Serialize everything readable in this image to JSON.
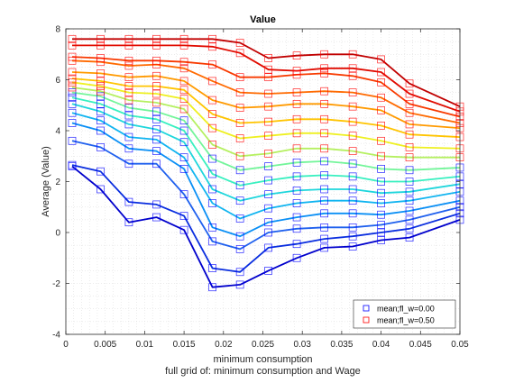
{
  "chart_data": {
    "type": "line",
    "title": "Value",
    "xlabel": "minimum consumption",
    "xlabel2": "full grid of: minimum consumption and Wage",
    "ylabel": "Average (Value)",
    "xlim": [
      0,
      0.05
    ],
    "ylim": [
      -4,
      8
    ],
    "xticks": [
      "0",
      "0.005",
      "0.01",
      "0.015",
      "0.02",
      "0.025",
      "0.03",
      "0.035",
      "0.04",
      "0.045",
      "0.05"
    ],
    "yticks": [
      "-4",
      "-2",
      "0",
      "2",
      "4",
      "6",
      "8"
    ],
    "grid": "minor dotted",
    "legend": {
      "placement": "bottom-right",
      "entries": [
        {
          "label": "mean;fl_w=0.00",
          "color": "#0000ff",
          "marker": "square"
        },
        {
          "label": "mean;fl_w=0.50",
          "color": "#ff0000",
          "marker": "square"
        }
      ]
    },
    "x": [
      0.0008,
      0.0044,
      0.008,
      0.0115,
      0.015,
      0.0186,
      0.0221,
      0.0257,
      0.0293,
      0.0328,
      0.0364,
      0.04,
      0.0436,
      0.05
    ],
    "series": [
      {
        "color": "#0000cc",
        "values": [
          2.6,
          1.7,
          0.4,
          0.6,
          0.1,
          -2.15,
          -2.05,
          -1.5,
          -1.0,
          -0.6,
          -0.55,
          -0.3,
          -0.2,
          0.5
        ]
      },
      {
        "color": "#0a2edf",
        "values": [
          2.65,
          2.4,
          1.2,
          1.1,
          0.65,
          -1.4,
          -1.55,
          -0.6,
          -0.45,
          -0.25,
          -0.15,
          0.0,
          0.15,
          0.75
        ]
      },
      {
        "color": "#1f60ee",
        "values": [
          3.6,
          3.35,
          2.7,
          2.7,
          1.5,
          -0.35,
          -0.65,
          0.0,
          0.15,
          0.2,
          0.2,
          0.3,
          0.5,
          1.0
        ]
      },
      {
        "color": "#0a8ff5",
        "values": [
          4.3,
          4.0,
          3.3,
          3.2,
          2.5,
          0.2,
          -0.15,
          0.4,
          0.6,
          0.75,
          0.75,
          0.7,
          0.85,
          1.25
        ]
      },
      {
        "color": "#10b4f0",
        "values": [
          4.7,
          4.4,
          3.75,
          3.65,
          2.95,
          1.15,
          0.55,
          0.95,
          1.15,
          1.25,
          1.25,
          1.15,
          1.25,
          1.6
        ]
      },
      {
        "color": "#1fd6dc",
        "values": [
          5.05,
          4.75,
          4.25,
          4.05,
          3.55,
          1.7,
          1.25,
          1.5,
          1.65,
          1.7,
          1.7,
          1.55,
          1.6,
          1.9
        ]
      },
      {
        "color": "#38f0c0",
        "values": [
          5.3,
          5.05,
          4.6,
          4.45,
          4.0,
          2.3,
          1.85,
          2.05,
          2.2,
          2.25,
          2.2,
          2.0,
          2.0,
          2.2
        ]
      },
      {
        "color": "#73f59a",
        "values": [
          5.5,
          5.35,
          4.9,
          4.75,
          4.4,
          2.9,
          2.45,
          2.6,
          2.75,
          2.8,
          2.7,
          2.5,
          2.45,
          2.55
        ]
      },
      {
        "color": "#b5f060",
        "values": [
          5.7,
          5.55,
          5.2,
          5.1,
          4.85,
          3.45,
          3.0,
          3.1,
          3.3,
          3.3,
          3.2,
          3.0,
          2.95,
          2.95
        ]
      },
      {
        "color": "#eef020",
        "values": [
          5.9,
          5.75,
          5.5,
          5.45,
          5.25,
          4.1,
          3.7,
          3.8,
          3.9,
          3.9,
          3.8,
          3.6,
          3.35,
          3.3
        ]
      },
      {
        "color": "#ffc400",
        "values": [
          6.05,
          5.95,
          5.75,
          5.75,
          5.6,
          4.65,
          4.3,
          4.35,
          4.45,
          4.45,
          4.35,
          4.2,
          3.85,
          3.75
        ]
      },
      {
        "color": "#ff9a00",
        "values": [
          6.3,
          6.25,
          6.1,
          6.15,
          5.95,
          5.2,
          4.9,
          4.95,
          5.05,
          5.05,
          4.95,
          4.8,
          4.25,
          4.1
        ]
      },
      {
        "color": "#ff6a00",
        "values": [
          6.75,
          6.7,
          6.55,
          6.6,
          6.45,
          5.95,
          5.5,
          5.45,
          5.5,
          5.55,
          5.5,
          5.3,
          4.7,
          4.3
        ]
      },
      {
        "color": "#f83a00",
        "values": [
          6.9,
          6.85,
          6.75,
          6.75,
          6.7,
          6.6,
          6.1,
          6.1,
          6.2,
          6.25,
          6.15,
          5.9,
          5.05,
          4.55
        ]
      },
      {
        "color": "#e00b00",
        "values": [
          7.35,
          7.35,
          7.35,
          7.35,
          7.35,
          7.3,
          7.05,
          6.4,
          6.35,
          6.45,
          6.45,
          6.3,
          5.45,
          4.75
        ]
      },
      {
        "color": "#c00000",
        "values": [
          7.6,
          7.6,
          7.6,
          7.6,
          7.6,
          7.6,
          7.45,
          6.85,
          6.95,
          7.0,
          7.0,
          6.8,
          5.85,
          4.95
        ]
      }
    ]
  }
}
